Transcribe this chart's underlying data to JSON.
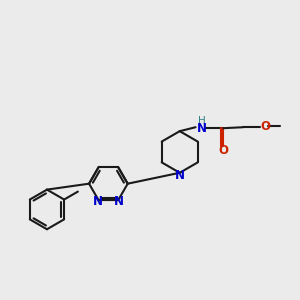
{
  "bg_color": "#ebebeb",
  "bond_color": "#1a1a1a",
  "N_color": "#0000cc",
  "O_color": "#cc2200",
  "NH_color": "#2e8080",
  "lw": 1.5,
  "fs": 8.5,
  "xlim": [
    0.0,
    3.0
  ],
  "ylim": [
    0.0,
    3.0
  ]
}
